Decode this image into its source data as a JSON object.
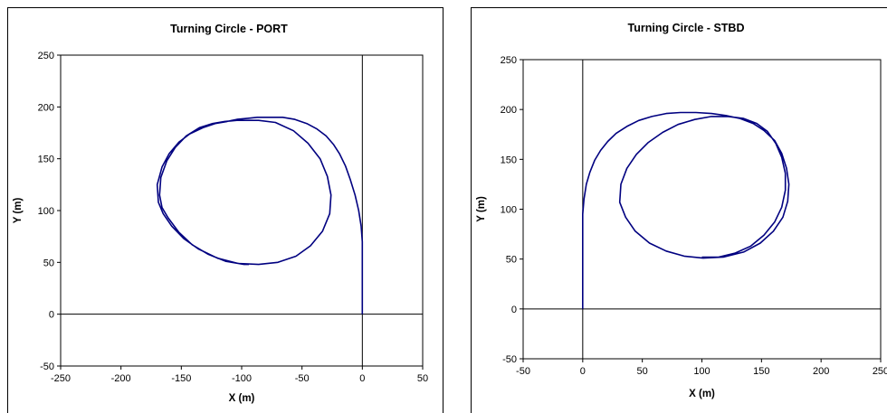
{
  "chart_data": [
    {
      "type": "line",
      "title": "Turning Circle - PORT",
      "xlabel": "X (m)",
      "ylabel": "Y (m)",
      "xlim": [
        -250,
        50
      ],
      "ylim": [
        -50,
        250
      ],
      "xticks": [
        "-250",
        "-200",
        "-150",
        "-100",
        "-50",
        "0",
        "50"
      ],
      "yticks": [
        "-50",
        "0",
        "50",
        "100",
        "150",
        "200",
        "250"
      ],
      "grid": false,
      "legend": false,
      "color": "#000080",
      "series": [
        {
          "x": [
            0,
            0,
            0,
            0,
            -1,
            -3,
            -6,
            -10,
            -14,
            -19,
            -24,
            -30,
            -38,
            -46,
            -56,
            -66,
            -77,
            -87,
            -95,
            -104,
            -112,
            -122,
            -132,
            -143,
            -152,
            -160,
            -166,
            -170,
            -169,
            -165,
            -158,
            -148,
            -136,
            -120,
            -103,
            -86,
            -70,
            -55,
            -43,
            -33,
            -27,
            -26,
            -29,
            -35,
            -45,
            -57,
            -72,
            -86,
            -96,
            -104,
            -114,
            -124,
            -135,
            -146,
            -155,
            -162,
            -167,
            -168,
            -166,
            -161,
            -152,
            -141,
            -128,
            -113,
            -98,
            -94
          ],
          "y": [
            0,
            20,
            40,
            70,
            85,
            100,
            115,
            130,
            143,
            155,
            164,
            172,
            179,
            184,
            188,
            190,
            190,
            190,
            189,
            188,
            186,
            184,
            180,
            174,
            166,
            155,
            142,
            125,
            108,
            97,
            85,
            73,
            63,
            54,
            49,
            48,
            50,
            56,
            66,
            80,
            97,
            115,
            133,
            150,
            165,
            177,
            185,
            187,
            187,
            187,
            186,
            184,
            180,
            172,
            161,
            148,
            132,
            115,
            103,
            93,
            79,
            67,
            58,
            51,
            48,
            48
          ]
        }
      ]
    },
    {
      "type": "line",
      "title": "Turning Circle - STBD",
      "xlabel": "X (m)",
      "ylabel": "Y (m)",
      "xlim": [
        -50,
        250
      ],
      "ylim": [
        -50,
        250
      ],
      "xticks": [
        "-50",
        "0",
        "50",
        "100",
        "150",
        "200",
        "250"
      ],
      "yticks": [
        "-50",
        "0",
        "50",
        "100",
        "150",
        "200",
        "250"
      ],
      "grid": false,
      "legend": false,
      "color": "#000080",
      "series": [
        {
          "x": [
            0,
            0,
            0,
            0,
            1,
            3,
            6,
            10,
            15,
            21,
            28,
            37,
            47,
            58,
            70,
            82,
            95,
            108,
            120,
            132,
            143,
            152,
            161,
            167,
            171,
            173,
            172,
            168,
            160,
            149,
            135,
            118,
            101,
            85,
            70,
            56,
            44,
            36,
            31,
            32,
            37,
            45,
            55,
            67,
            80,
            94,
            108,
            122,
            135,
            146,
            155,
            162,
            167,
            170,
            170,
            167,
            161,
            152,
            141,
            128,
            114,
            100
          ],
          "y": [
            0,
            35,
            70,
            95,
            110,
            125,
            137,
            149,
            159,
            168,
            176,
            183,
            189,
            193,
            196,
            197,
            197,
            196,
            194,
            191,
            186,
            179,
            169,
            156,
            141,
            125,
            108,
            92,
            78,
            66,
            57,
            52,
            51,
            53,
            58,
            66,
            78,
            92,
            107,
            125,
            141,
            155,
            167,
            177,
            185,
            190,
            193,
            193,
            191,
            186,
            178,
            166,
            152,
            136,
            119,
            102,
            87,
            74,
            63,
            56,
            52,
            52
          ]
        }
      ]
    }
  ]
}
